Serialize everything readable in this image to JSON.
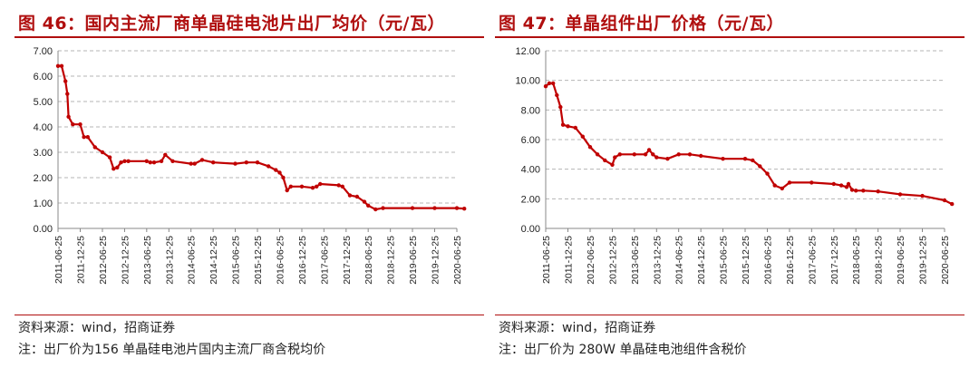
{
  "panels": [
    {
      "title": "图 46：国内主流厂商单晶硅电池片出厂均价（元/瓦）",
      "source": "资料来源：wind，招商证券",
      "note": "注：出厂价为156 单晶硅电池片国内主流厂商含税均价"
    },
    {
      "title": "图 47：单晶组件出厂价格（元/瓦）",
      "source": "资料来源：wind，招商证券",
      "note": "注：出厂价为 280W 单晶硅电池组件含税价"
    }
  ],
  "colors": {
    "accent": "#b00f0f",
    "series": "#c00000",
    "grid": "#b5b5b5"
  },
  "chart_data": [
    {
      "type": "line",
      "title": "",
      "xlabel": "",
      "ylabel": "",
      "x_ticks": [
        "2011-06-25",
        "2011-12-25",
        "2012-06-25",
        "2012-12-25",
        "2013-06-25",
        "2013-12-25",
        "2014-06-25",
        "2014-12-25",
        "2015-06-25",
        "2015-12-25",
        "2016-06-25",
        "2016-12-25",
        "2017-06-25",
        "2017-12-25",
        "2018-06-25",
        "2018-12-25",
        "2019-06-25",
        "2019-12-25",
        "2020-06-25"
      ],
      "y_ticks": [
        "0.00",
        "1.00",
        "2.00",
        "3.00",
        "4.00",
        "5.00",
        "6.00",
        "7.00"
      ],
      "ylim": [
        0,
        7
      ],
      "grid": "horizontal dashed",
      "series": [
        {
          "x": [
            "2011-06-25",
            "2011-07-25",
            "2011-08-25",
            "2011-09-10",
            "2011-09-20",
            "2011-10-25",
            "2011-12-25",
            "2012-01-25",
            "2012-02-25",
            "2012-04-25",
            "2012-06-25",
            "2012-08-25",
            "2012-09-25",
            "2012-10-25",
            "2012-11-25",
            "2012-12-25",
            "2013-01-25",
            "2013-06-25",
            "2013-07-25",
            "2013-08-25",
            "2013-10-25",
            "2013-11-25",
            "2014-01-25",
            "2014-06-25",
            "2014-07-25",
            "2014-09-25",
            "2014-12-25",
            "2015-06-25",
            "2015-09-25",
            "2015-12-25",
            "2016-03-25",
            "2016-05-25",
            "2016-06-25",
            "2016-07-25",
            "2016-08-25",
            "2016-09-25",
            "2016-12-25",
            "2017-03-25",
            "2017-04-25",
            "2017-05-25",
            "2017-10-25",
            "2017-11-25",
            "2018-01-25",
            "2018-03-25",
            "2018-05-25",
            "2018-06-25",
            "2018-08-25",
            "2018-10-25",
            "2019-06-25",
            "2019-12-25",
            "2020-06-25",
            "2020-08-25"
          ],
          "values": [
            6.4,
            6.4,
            5.8,
            5.3,
            4.4,
            4.1,
            4.1,
            3.6,
            3.6,
            3.2,
            3.0,
            2.8,
            2.35,
            2.4,
            2.6,
            2.65,
            2.65,
            2.65,
            2.6,
            2.6,
            2.65,
            2.9,
            2.65,
            2.55,
            2.55,
            2.7,
            2.6,
            2.55,
            2.6,
            2.6,
            2.45,
            2.3,
            2.2,
            2.0,
            1.5,
            1.65,
            1.65,
            1.6,
            1.65,
            1.75,
            1.7,
            1.65,
            1.3,
            1.25,
            1.05,
            0.9,
            0.75,
            0.8,
            0.8,
            0.8,
            0.8,
            0.78
          ]
        }
      ]
    },
    {
      "type": "line",
      "title": "",
      "xlabel": "",
      "ylabel": "",
      "x_ticks": [
        "2011-06-25",
        "2011-12-25",
        "2012-06-25",
        "2012-12-25",
        "2013-06-25",
        "2013-12-25",
        "2014-06-25",
        "2014-12-25",
        "2015-06-25",
        "2015-12-25",
        "2016-06-25",
        "2016-12-25",
        "2017-06-25",
        "2017-12-25",
        "2018-06-25",
        "2018-12-25",
        "2019-06-25",
        "2019-12-25",
        "2020-06-25"
      ],
      "y_ticks": [
        "0.00",
        "2.00",
        "4.00",
        "6.00",
        "8.00",
        "10.00",
        "12.00"
      ],
      "ylim": [
        0,
        12
      ],
      "grid": "horizontal dashed",
      "series": [
        {
          "x": [
            "2011-06-25",
            "2011-07-25",
            "2011-08-25",
            "2011-09-25",
            "2011-10-25",
            "2011-11-15",
            "2011-12-25",
            "2012-02-25",
            "2012-04-25",
            "2012-06-25",
            "2012-08-25",
            "2012-10-25",
            "2012-12-25",
            "2013-01-15",
            "2013-02-25",
            "2013-06-25",
            "2013-09-25",
            "2013-10-25",
            "2013-11-25",
            "2013-12-25",
            "2014-03-25",
            "2014-06-25",
            "2014-09-25",
            "2014-12-25",
            "2015-06-25",
            "2015-12-25",
            "2016-02-25",
            "2016-04-25",
            "2016-06-25",
            "2016-08-25",
            "2016-10-25",
            "2016-12-25",
            "2017-06-25",
            "2017-12-25",
            "2018-02-25",
            "2018-04-10",
            "2018-04-25",
            "2018-05-25",
            "2018-06-25",
            "2018-08-25",
            "2018-12-25",
            "2019-06-25",
            "2019-12-25",
            "2020-06-25",
            "2020-08-25"
          ],
          "values": [
            9.6,
            9.8,
            9.8,
            9.0,
            8.2,
            7.0,
            6.9,
            6.8,
            6.2,
            5.5,
            5.0,
            4.6,
            4.3,
            4.8,
            5.0,
            5.0,
            5.0,
            5.3,
            5.0,
            4.8,
            4.7,
            5.0,
            5.0,
            4.9,
            4.7,
            4.7,
            4.6,
            4.2,
            3.7,
            2.9,
            2.7,
            3.1,
            3.1,
            3.0,
            2.9,
            2.8,
            3.0,
            2.6,
            2.55,
            2.55,
            2.5,
            2.3,
            2.2,
            1.9,
            1.65
          ]
        }
      ]
    }
  ]
}
